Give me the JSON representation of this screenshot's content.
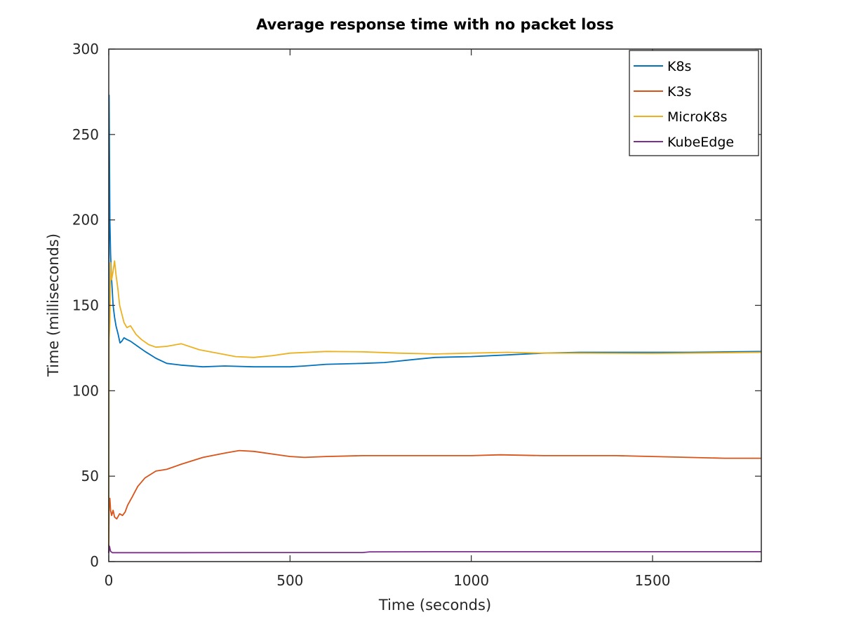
{
  "chart_data": {
    "type": "line",
    "title": "Average response time with no packet loss",
    "xlabel": "Time (seconds)",
    "ylabel": "Time (milliseconds)",
    "xlim": [
      0,
      1800
    ],
    "ylim": [
      0,
      300
    ],
    "xticks": [
      0,
      500,
      1000,
      1500
    ],
    "yticks": [
      0,
      50,
      100,
      150,
      200,
      250,
      300
    ],
    "grid": false,
    "legend_position": "top-right",
    "series": [
      {
        "name": "K8s",
        "color": "#0072BD",
        "points": [
          [
            0,
            5
          ],
          [
            1,
            273
          ],
          [
            3,
            200
          ],
          [
            5,
            180
          ],
          [
            8,
            165
          ],
          [
            12,
            150
          ],
          [
            16,
            143
          ],
          [
            20,
            138
          ],
          [
            26,
            133
          ],
          [
            31,
            128
          ],
          [
            36,
            129
          ],
          [
            42,
            131
          ],
          [
            50,
            130
          ],
          [
            60,
            129
          ],
          [
            80,
            126
          ],
          [
            100,
            123
          ],
          [
            130,
            119
          ],
          [
            160,
            116
          ],
          [
            200,
            115
          ],
          [
            260,
            114
          ],
          [
            320,
            114.5
          ],
          [
            400,
            114
          ],
          [
            500,
            114
          ],
          [
            540,
            114.5
          ],
          [
            600,
            115.5
          ],
          [
            700,
            116
          ],
          [
            760,
            116.5
          ],
          [
            850,
            118.5
          ],
          [
            900,
            119.5
          ],
          [
            1000,
            120
          ],
          [
            1100,
            121
          ],
          [
            1200,
            122
          ],
          [
            1300,
            122.5
          ],
          [
            1500,
            122.5
          ],
          [
            1600,
            122.5
          ],
          [
            1800,
            123
          ]
        ]
      },
      {
        "name": "K3s",
        "color": "#D95319",
        "points": [
          [
            0,
            5
          ],
          [
            1,
            32
          ],
          [
            3,
            37
          ],
          [
            5,
            30
          ],
          [
            8,
            27
          ],
          [
            12,
            30
          ],
          [
            16,
            26
          ],
          [
            22,
            25
          ],
          [
            30,
            28
          ],
          [
            38,
            27
          ],
          [
            45,
            29
          ],
          [
            52,
            33
          ],
          [
            65,
            38
          ],
          [
            80,
            44
          ],
          [
            100,
            49
          ],
          [
            130,
            53
          ],
          [
            160,
            54
          ],
          [
            200,
            57
          ],
          [
            260,
            61
          ],
          [
            320,
            63.5
          ],
          [
            360,
            65
          ],
          [
            400,
            64.5
          ],
          [
            450,
            63
          ],
          [
            500,
            61.5
          ],
          [
            540,
            61
          ],
          [
            600,
            61.5
          ],
          [
            700,
            62
          ],
          [
            800,
            62
          ],
          [
            900,
            62
          ],
          [
            1000,
            62
          ],
          [
            1080,
            62.5
          ],
          [
            1200,
            62
          ],
          [
            1400,
            62
          ],
          [
            1500,
            61.5
          ],
          [
            1600,
            61
          ],
          [
            1700,
            60.5
          ],
          [
            1800,
            60.5
          ]
        ]
      },
      {
        "name": "MicroK8s",
        "color": "#EDB120",
        "points": [
          [
            0,
            10
          ],
          [
            1,
            130
          ],
          [
            3,
            140
          ],
          [
            5,
            175
          ],
          [
            8,
            165
          ],
          [
            12,
            170
          ],
          [
            16,
            176
          ],
          [
            20,
            168
          ],
          [
            25,
            160
          ],
          [
            30,
            150
          ],
          [
            36,
            145
          ],
          [
            42,
            140
          ],
          [
            50,
            137
          ],
          [
            60,
            138
          ],
          [
            75,
            133
          ],
          [
            90,
            130
          ],
          [
            110,
            127
          ],
          [
            130,
            125.5
          ],
          [
            160,
            126
          ],
          [
            200,
            127.5
          ],
          [
            250,
            124
          ],
          [
            300,
            122
          ],
          [
            350,
            120
          ],
          [
            400,
            119.5
          ],
          [
            450,
            120.5
          ],
          [
            500,
            122
          ],
          [
            600,
            123
          ],
          [
            700,
            122.8
          ],
          [
            800,
            122
          ],
          [
            900,
            121.5
          ],
          [
            1000,
            122
          ],
          [
            1100,
            122.5
          ],
          [
            1200,
            122
          ],
          [
            1300,
            122
          ],
          [
            1500,
            121.8
          ],
          [
            1600,
            122
          ],
          [
            1800,
            122.5
          ]
        ]
      },
      {
        "name": "KubeEdge",
        "color": "#7E2F8E",
        "points": [
          [
            0,
            5
          ],
          [
            2,
            9
          ],
          [
            5,
            6
          ],
          [
            10,
            5.2
          ],
          [
            50,
            5.2
          ],
          [
            200,
            5.2
          ],
          [
            400,
            5.3
          ],
          [
            600,
            5.3
          ],
          [
            700,
            5.3
          ],
          [
            720,
            5.7
          ],
          [
            900,
            5.8
          ],
          [
            1200,
            5.8
          ],
          [
            1500,
            5.8
          ],
          [
            1800,
            5.8
          ]
        ]
      }
    ]
  }
}
